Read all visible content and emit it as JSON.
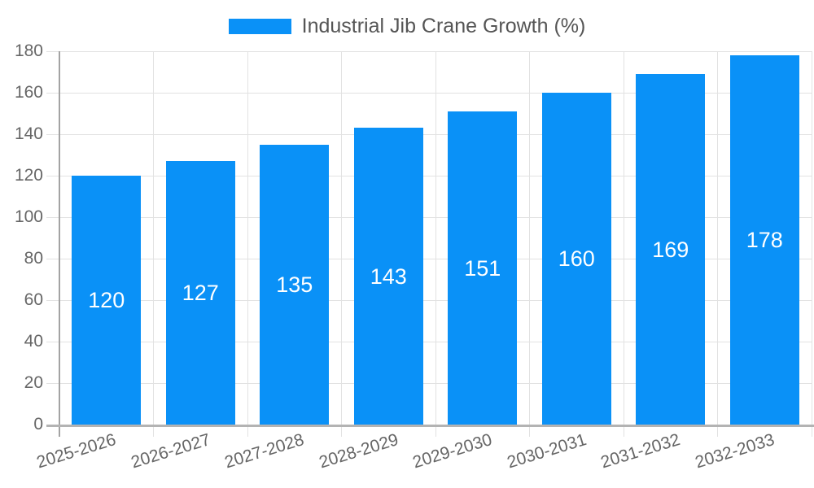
{
  "chart_data": {
    "type": "bar",
    "title": "Industrial Jib Crane Growth (%)",
    "categories": [
      "2025-2026",
      "2026-2027",
      "2027-2028",
      "2028-2029",
      "2029-2030",
      "2030-2031",
      "2031-2032",
      "2032-2033"
    ],
    "series": [
      {
        "name": "Industrial Jib Crane Growth (%)",
        "values": [
          120,
          127,
          135,
          143,
          151,
          160,
          169,
          178
        ],
        "color": "#0a91f7"
      }
    ],
    "xlabel": "",
    "ylabel": "",
    "ylim": [
      0,
      180
    ],
    "y_ticks": [
      0,
      20,
      40,
      60,
      80,
      100,
      120,
      140,
      160,
      180
    ],
    "grid": true,
    "bar_value_labels": [
      "120",
      "127",
      "135",
      "143",
      "151",
      "160",
      "169",
      "178"
    ],
    "bar_value_label_position": "inside-center",
    "legend_position": "top-center",
    "colors": {
      "bar": "#0a91f7",
      "bar_label": "#ffffff",
      "grid": "#e2e2e2",
      "x_axis": "#b3b3b3",
      "y_axis": "#a3a3a3",
      "tick_label": "#666666",
      "legend_text": "#555555",
      "background": "#ffffff"
    }
  }
}
